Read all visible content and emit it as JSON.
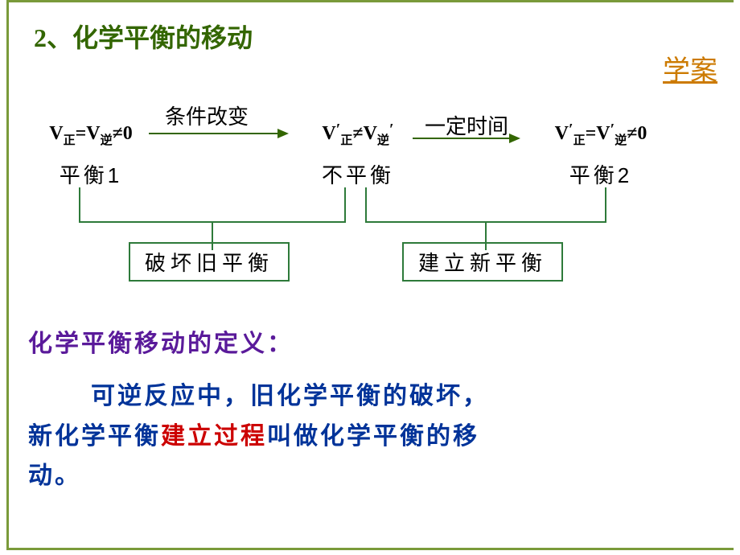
{
  "colors": {
    "frame": "#7a9a3a",
    "title": "#336600",
    "xuean": "#cc7a00",
    "formula": "#000000",
    "stage_label": "#000000",
    "arrow1": "#336600",
    "arrow2": "#336600",
    "arrow_label": "#000000",
    "bracket": "#2e7a3a",
    "box_border": "#2e7a3a",
    "box_text": "#000000",
    "def_title": "#5a1a9a",
    "def_body": "#003399",
    "def_highlight": "#cc0000"
  },
  "section_title": "2、化学平衡的移动",
  "xuean": "学案",
  "stages": {
    "s1": {
      "formula_html": "V<sub>正</sub>=V<sub>逆</sub>≠0",
      "label": "平衡1"
    },
    "s2": {
      "formula_html": "V<span class=\"prime\">′</span><sub>正</sub>≠V<sub>逆</sub><span class=\"prime\">′</span>",
      "label": "不平衡"
    },
    "s3": {
      "formula_html": "V<span class=\"prime\">′</span><sub>正</sub>=V<span class=\"prime\">′</span><sub>逆</sub>≠0",
      "label": "平衡2"
    }
  },
  "arrows": {
    "a1": "条件改变",
    "a2": "一定时间"
  },
  "boxes": {
    "b1": "破坏旧平衡",
    "b2": "建立新平衡"
  },
  "definition": {
    "title": "化学平衡移动的定义：",
    "line1_pre": "可逆反应中，旧化学平衡的破坏，",
    "line2_pre": "新化学平衡",
    "highlight": "建立过程",
    "line2_post": "叫做化学平衡的移",
    "line3": "动。"
  }
}
